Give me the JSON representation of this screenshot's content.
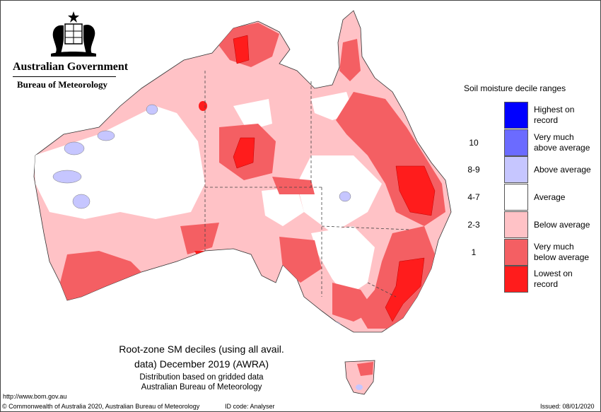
{
  "header": {
    "government": "Australian Government",
    "bureau": "Bureau of Meteorology"
  },
  "map": {
    "title_line1": "Root-zone SM deciles (using all avail.",
    "title_line2": "data) December 2019 (AWRA)",
    "subtitle_line1": "Distribution based on gridded data",
    "subtitle_line2": "Australian Bureau of Meteorology"
  },
  "legend": {
    "title": "Soil moisture decile ranges",
    "items": [
      {
        "range": "",
        "label": "Highest on record",
        "color": "#0000ff"
      },
      {
        "range": "10",
        "label": "Very much above average",
        "color": "#6b6bff"
      },
      {
        "range": "8-9",
        "label": "Above average",
        "color": "#c6c6ff"
      },
      {
        "range": "4-7",
        "label": "Average",
        "color": "#ffffff"
      },
      {
        "range": "2-3",
        "label": "Below average",
        "color": "#ffc2c6"
      },
      {
        "range": "1",
        "label": "Very much below average",
        "color": "#f45f63"
      },
      {
        "range": "",
        "label": "Lowest on record",
        "color": "#ff1c1c"
      }
    ]
  },
  "footer": {
    "url": "http://www.bom.gov.au",
    "copyright": "© Commonwealth of Australia 2020, Australian Bureau of Meteorology",
    "id_code": "ID code: Analyser",
    "issued": "Issued: 08/01/2020"
  }
}
